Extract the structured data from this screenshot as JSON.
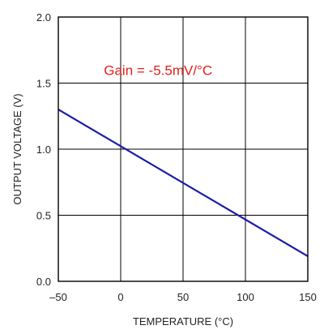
{
  "chart_data": {
    "type": "line",
    "title": "",
    "xlabel": "TEMPERATURE (°C)",
    "ylabel": "OUTPUT VOLTAGE (V)",
    "xlim": [
      -50,
      150
    ],
    "ylim": [
      0.0,
      2.0
    ],
    "x_ticks": [
      -50,
      0,
      50,
      100,
      150
    ],
    "x_tick_labels": [
      "–50",
      "0",
      "50",
      "100",
      "150"
    ],
    "y_ticks": [
      0.0,
      0.5,
      1.0,
      1.5,
      2.0
    ],
    "y_tick_labels": [
      "0.0",
      "0.5",
      "1.0",
      "1.5",
      "2.0"
    ],
    "grid": true,
    "legend": "none",
    "series": [
      {
        "color": "#1a1aaa",
        "x": [
          -50,
          150
        ],
        "y": [
          1.3,
          0.19
        ]
      }
    ],
    "annotation": {
      "text": "Gain = -5.5mV/°C",
      "x": 30,
      "y": 1.56,
      "color": "#e0201c"
    }
  }
}
